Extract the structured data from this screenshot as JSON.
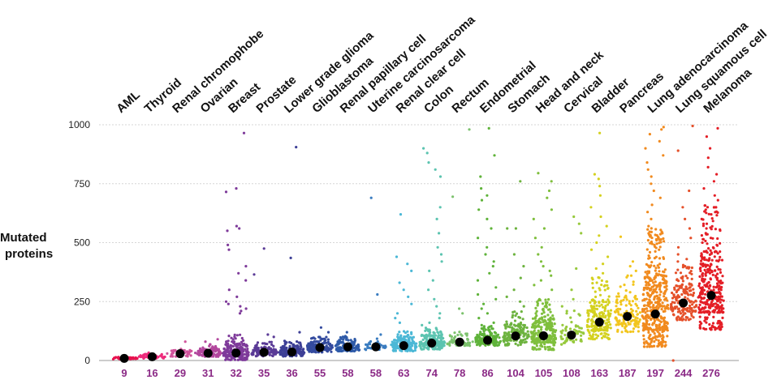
{
  "chart_data": {
    "type": "scatter",
    "subtype": "jitter-strip",
    "title": "",
    "xlabel": "",
    "ylabel": "Mutated proteins",
    "ylabel_lines": [
      "Mutated",
      "proteins"
    ],
    "ylim": [
      0,
      1000
    ],
    "yticks": [
      0,
      250,
      500,
      750,
      1000
    ],
    "grid": true,
    "median_label_color": "#8b2a86",
    "median_marker_color": "#000000",
    "categories": [
      {
        "name": "AML",
        "median": 9,
        "color": "#e8134f",
        "n": 40,
        "spread": 5,
        "outliers": []
      },
      {
        "name": "Thyroid",
        "median": 16,
        "color": "#ee2a7b",
        "n": 60,
        "spread": 12,
        "outliers": []
      },
      {
        "name": "Renal chromophobe",
        "median": 29,
        "color": "#d0549c",
        "n": 50,
        "spread": 18,
        "outliers": [
          80
        ]
      },
      {
        "name": "Ovarian",
        "median": 31,
        "color": "#b2479d",
        "n": 90,
        "spread": 22,
        "outliers": [
          90,
          80
        ]
      },
      {
        "name": "Breast",
        "median": 32,
        "color": "#7e3a9a",
        "n": 220,
        "spread": 45,
        "outliers": [
          965,
          730,
          715,
          570,
          560,
          550,
          490,
          470,
          400,
          370,
          340,
          300,
          270,
          250,
          240,
          230,
          220,
          210,
          200
        ]
      },
      {
        "name": "Prostate",
        "median": 35,
        "color": "#5a3a96",
        "n": 120,
        "spread": 25,
        "outliers": [
          475,
          365,
          110,
          100
        ]
      },
      {
        "name": "Lower grade glioma",
        "median": 36,
        "color": "#3d3f96",
        "n": 150,
        "spread": 28,
        "outliers": [
          905,
          435,
          120
        ]
      },
      {
        "name": "Glioblastoma",
        "median": 55,
        "color": "#344b9f",
        "n": 140,
        "spread": 30,
        "outliers": [
          140,
          120
        ]
      },
      {
        "name": "Renal papillary cell",
        "median": 58,
        "color": "#2e5aa8",
        "n": 110,
        "spread": 28,
        "outliers": [
          120
        ]
      },
      {
        "name": "Uterine carcinosarcoma",
        "median": 58,
        "color": "#3a7cc0",
        "n": 30,
        "spread": 20,
        "outliers": [
          690,
          280,
          110
        ]
      },
      {
        "name": "Renal clear cell",
        "median": 63,
        "color": "#4cb8d6",
        "n": 160,
        "spread": 35,
        "outliers": [
          620,
          440,
          410,
          380,
          330,
          300,
          270,
          240,
          200,
          180,
          160
        ]
      },
      {
        "name": "Colon",
        "median": 74,
        "color": "#5cc4b0",
        "n": 180,
        "spread": 40,
        "outliers": [
          900,
          880,
          840,
          810,
          780,
          650,
          600,
          540,
          480,
          450,
          420,
          380,
          340,
          300,
          260,
          230,
          200,
          180,
          160,
          150
        ]
      },
      {
        "name": "Rectum",
        "median": 78,
        "color": "#7cc26d",
        "n": 60,
        "spread": 25,
        "outliers": [
          980,
          695,
          220,
          200
        ]
      },
      {
        "name": "Endometrial",
        "median": 86,
        "color": "#5fb33a",
        "n": 160,
        "spread": 35,
        "outliers": [
          985,
          870,
          780,
          730,
          700,
          680,
          640,
          600,
          560,
          520,
          480,
          450,
          420,
          400,
          370,
          340,
          310,
          280,
          260,
          240,
          220,
          200,
          180,
          160,
          150
        ]
      },
      {
        "name": "Stomach",
        "median": 104,
        "color": "#6db33f",
        "n": 140,
        "spread": 60,
        "outliers": [
          760,
          560,
          560,
          450,
          400,
          350,
          300,
          270,
          250,
          230
        ]
      },
      {
        "name": "Head and neck",
        "median": 105,
        "color": "#7fbf3d",
        "n": 260,
        "spread": 90,
        "outliers": [
          795,
          760,
          720,
          690,
          640,
          600,
          560,
          520,
          480,
          450,
          420,
          400,
          380,
          360,
          340,
          320,
          300
        ]
      },
      {
        "name": "Cervical",
        "median": 108,
        "color": "#97c93d",
        "n": 60,
        "spread": 60,
        "outliers": [
          610,
          580,
          540,
          390,
          300,
          260,
          230,
          200
        ]
      },
      {
        "name": "Bladder",
        "median": 163,
        "color": "#d4d11f",
        "n": 200,
        "spread": 110,
        "outliers": [
          965,
          790,
          770,
          740,
          700,
          650,
          610,
          570,
          530,
          500,
          470,
          440,
          410,
          390,
          370,
          350,
          330
        ]
      },
      {
        "name": "Pancreas",
        "median": 187,
        "color": "#f2c51c",
        "n": 120,
        "spread": 100,
        "outliers": [
          525,
          420,
          400,
          380,
          360
        ]
      },
      {
        "name": "Lung adenocarcinoma",
        "median": 197,
        "color": "#f18a1e",
        "n": 420,
        "spread": 210,
        "outliers": [
          990,
          980,
          960,
          930,
          900,
          870,
          840,
          810,
          780,
          750,
          720,
          690,
          660,
          630,
          600,
          570,
          540,
          510,
          490,
          470
        ]
      },
      {
        "name": "Lung squamous cell",
        "median": 244,
        "color": "#e5502a",
        "n": 170,
        "spread": 110,
        "outliers": [
          995,
          890,
          720,
          650,
          600,
          560,
          520,
          480,
          450,
          420,
          400,
          0
        ]
      },
      {
        "name": "Melanoma",
        "median": 276,
        "color": "#e41e26",
        "n": 340,
        "spread": 220,
        "outliers": [
          985,
          950,
          900,
          860,
          820,
          790,
          760,
          730,
          700,
          680,
          650,
          620,
          600,
          580,
          560,
          540
        ]
      }
    ]
  }
}
